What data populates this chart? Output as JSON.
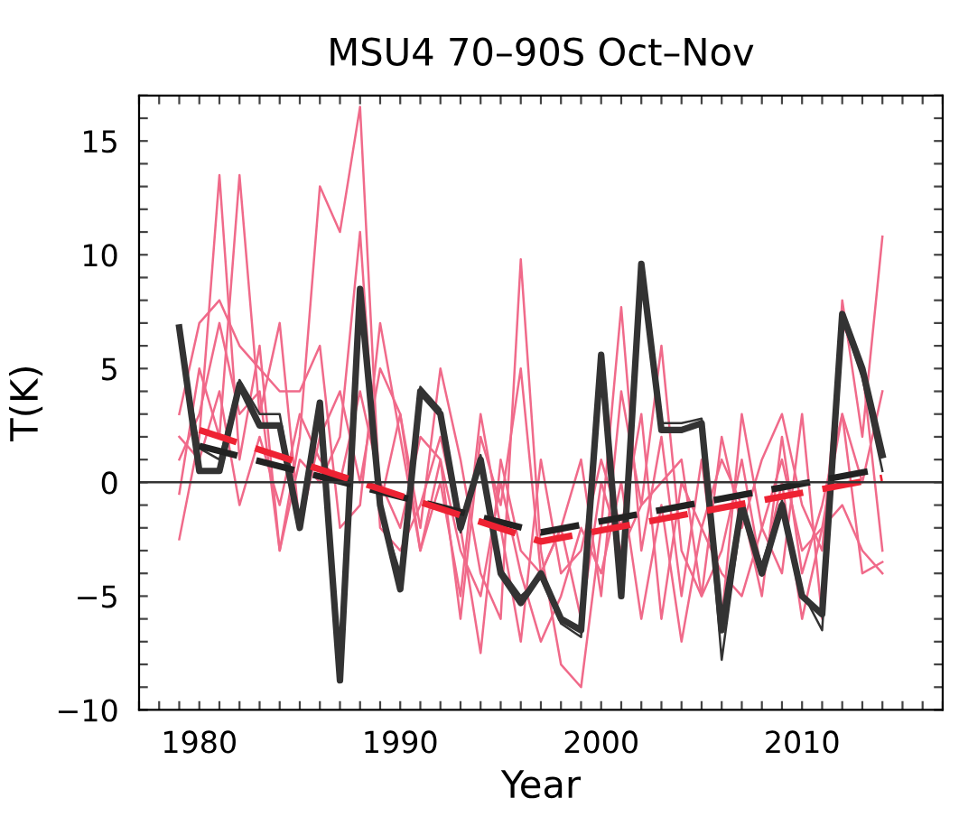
{
  "chart_data": {
    "type": "line",
    "title": "MSU4 70–90S Oct–Nov",
    "xlabel": "Year",
    "ylabel": "T(K)",
    "x": [
      1979,
      1980,
      1981,
      1982,
      1983,
      1984,
      1985,
      1986,
      1987,
      1988,
      1989,
      1990,
      1991,
      1992,
      1993,
      1994,
      1995,
      1996,
      1997,
      1998,
      1999,
      2000,
      2001,
      2002,
      2003,
      2004,
      2005,
      2006,
      2007,
      2008,
      2009,
      2010,
      2011,
      2012,
      2013,
      2014
    ],
    "series": [
      {
        "color": "#f06a8a",
        "line_style": "solid",
        "values": [
          -2.5,
          2,
          13.5,
          1,
          6,
          -3,
          2,
          13,
          11,
          16.5,
          -1,
          3,
          -2,
          5,
          1,
          -4,
          -6,
          9.8,
          -3,
          -8,
          -9,
          -2,
          7.7,
          -3,
          2,
          -5,
          1,
          -6,
          3,
          -2,
          -4,
          3,
          -6,
          8,
          2,
          10.8
        ]
      },
      {
        "color": "#f06a8a",
        "line_style": "solid",
        "values": [
          -0.5,
          5,
          2,
          13.5,
          3,
          7,
          -2,
          2,
          4,
          0,
          5,
          3,
          -3,
          1,
          -6,
          2,
          -1,
          5,
          -4,
          -2,
          1,
          -5,
          4,
          -1,
          6,
          -3,
          -5,
          2,
          -2,
          1,
          3,
          -1,
          -3,
          7,
          5,
          -3
        ]
      },
      {
        "color": "#f06a8a",
        "line_style": "solid",
        "values": [
          3,
          7,
          8,
          6,
          5,
          4,
          4,
          6,
          -2,
          -1,
          7,
          2,
          -3,
          0,
          -5,
          3,
          -2,
          -7,
          1,
          -4,
          -3,
          1,
          -2,
          3,
          -6,
          0,
          -2,
          1,
          -1,
          -5,
          2,
          -4,
          -1,
          3,
          -4,
          -3.5
        ]
      },
      {
        "color": "#f06a8a",
        "line_style": "solid",
        "values": [
          1,
          3,
          7,
          3,
          4,
          -3,
          1,
          0,
          2,
          11,
          -2,
          -3,
          -1,
          2,
          -2,
          -7.5,
          1,
          -3,
          -4,
          -2,
          -6,
          0,
          -3,
          -1,
          0,
          1,
          -5,
          -3,
          1,
          -4,
          0,
          -6,
          -2,
          3,
          0,
          4
        ]
      },
      {
        "color": "#f06a8a",
        "line_style": "solid",
        "values": [
          2,
          1,
          4,
          -1,
          2,
          -1,
          3,
          1,
          0,
          4,
          0,
          -2,
          2,
          1,
          -3,
          -5,
          0,
          -4,
          -7,
          -5,
          -2,
          -4,
          0,
          -6,
          -1,
          -7,
          -2,
          -4,
          -5,
          -2,
          1,
          -3,
          -2,
          -1,
          -3,
          -4
        ]
      },
      {
        "color": "#333333",
        "line_style": "solid",
        "values": [
          6.5,
          1.5,
          1,
          4.5,
          3,
          3,
          -2,
          3.3,
          -8.5,
          8,
          -1.2,
          -4,
          4.2,
          3.2,
          -2.2,
          1.2,
          -3.8,
          -5,
          -4.2,
          -6.2,
          -6.8,
          5.3,
          -4.6,
          9.3,
          2.6,
          2.6,
          2.8,
          -7.8,
          -1.3,
          -3.6,
          -0.8,
          -4.8,
          -6.5,
          7.2,
          4.6,
          0.5
        ]
      },
      {
        "color": "#333333",
        "line_style": "solid",
        "values": [
          6.8,
          0.5,
          0.5,
          4.3,
          2.5,
          2.5,
          -2,
          3.5,
          -8.7,
          8.5,
          -1,
          -4.7,
          4,
          3,
          -2,
          1,
          -4,
          -5.3,
          -4,
          -6,
          -6.5,
          5.6,
          -5,
          9.6,
          2.3,
          2.3,
          2.6,
          -6.5,
          -1,
          -4,
          -1,
          -5,
          -5.8,
          7.4,
          5,
          1.2
        ]
      },
      {
        "color": "#222222",
        "line_style": "dashed",
        "x": [
          1980,
          1997,
          2014
        ],
        "values": [
          1.6,
          -2.2,
          0.6
        ]
      },
      {
        "color": "#ee2233",
        "line_style": "dashed",
        "x": [
          1980,
          1997,
          2014
        ],
        "values": [
          2.3,
          -2.6,
          0.2
        ]
      }
    ],
    "ref_lines": [
      {
        "axis": "y",
        "value": 0,
        "color": "#333333",
        "line_style": "solid"
      }
    ],
    "xlim": [
      1977,
      2017
    ],
    "ylim": [
      -10,
      17
    ],
    "xticks": [
      {
        "value": 1977,
        "label": null
      },
      {
        "value": 1978,
        "label": null
      },
      {
        "value": 1979,
        "label": null
      },
      1980,
      {
        "value": 1981,
        "label": null
      },
      {
        "value": 1982,
        "label": null
      },
      {
        "value": 1983,
        "label": null
      },
      {
        "value": 1984,
        "label": null
      },
      {
        "value": 1985,
        "label": null
      },
      {
        "value": 1986,
        "label": null
      },
      {
        "value": 1987,
        "label": null
      },
      {
        "value": 1988,
        "label": null
      },
      {
        "value": 1989,
        "label": null
      },
      1990,
      {
        "value": 1991,
        "label": null
      },
      {
        "value": 1992,
        "label": null
      },
      {
        "value": 1993,
        "label": null
      },
      {
        "value": 1994,
        "label": null
      },
      {
        "value": 1995,
        "label": null
      },
      {
        "value": 1996,
        "label": null
      },
      {
        "value": 1997,
        "label": null
      },
      {
        "value": 1998,
        "label": null
      },
      {
        "value": 1999,
        "label": null
      },
      2000,
      {
        "value": 2001,
        "label": null
      },
      {
        "value": 2002,
        "label": null
      },
      {
        "value": 2003,
        "label": null
      },
      {
        "value": 2004,
        "label": null
      },
      {
        "value": 2005,
        "label": null
      },
      {
        "value": 2006,
        "label": null
      },
      {
        "value": 2007,
        "label": null
      },
      {
        "value": 2008,
        "label": null
      },
      {
        "value": 2009,
        "label": null
      },
      2010,
      {
        "value": 2011,
        "label": null
      },
      {
        "value": 2012,
        "label": null
      },
      {
        "value": 2013,
        "label": null
      },
      {
        "value": 2014,
        "label": null
      },
      {
        "value": 2015,
        "label": null
      },
      {
        "value": 2016,
        "label": null
      },
      {
        "value": 2017,
        "label": null
      }
    ],
    "yticks": [
      {
        "value": -10,
        "label": "−10"
      },
      {
        "value": -9,
        "label": null
      },
      {
        "value": -8,
        "label": null
      },
      {
        "value": -7,
        "label": null
      },
      {
        "value": -6,
        "label": null
      },
      {
        "value": -5,
        "label": "−5"
      },
      {
        "value": -4,
        "label": null
      },
      {
        "value": -3,
        "label": null
      },
      {
        "value": -2,
        "label": null
      },
      {
        "value": -1,
        "label": null
      },
      0,
      {
        "value": 1,
        "label": null
      },
      {
        "value": 2,
        "label": null
      },
      {
        "value": 3,
        "label": null
      },
      {
        "value": 4,
        "label": null
      },
      5,
      {
        "value": 6,
        "label": null
      },
      {
        "value": 7,
        "label": null
      },
      {
        "value": 8,
        "label": null
      },
      {
        "value": 9,
        "label": null
      },
      10,
      {
        "value": 11,
        "label": null
      },
      {
        "value": 12,
        "label": null
      },
      {
        "value": 13,
        "label": null
      },
      {
        "value": 14,
        "label": null
      },
      15,
      {
        "value": 16,
        "label": null
      },
      {
        "value": 17,
        "label": null
      }
    ],
    "grid": false,
    "marker": "none"
  }
}
